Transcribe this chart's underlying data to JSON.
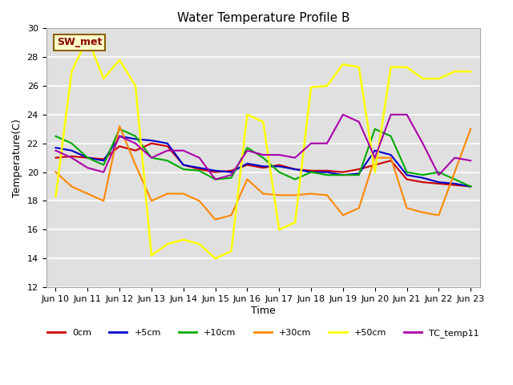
{
  "title": "Water Temperature Profile B",
  "xlabel": "Time",
  "ylabel": "Temperature(C)",
  "ylim": [
    12,
    30
  ],
  "yticks": [
    12,
    14,
    16,
    18,
    20,
    22,
    24,
    26,
    28,
    30
  ],
  "annotation_label": "SW_met",
  "annotation_color": "#8B0000",
  "annotation_bg": "#FFFFCC",
  "annotation_border": "#8B6000",
  "series_order": [
    "0cm",
    "+5cm",
    "+10cm",
    "+30cm",
    "+50cm",
    "TC_temp11"
  ],
  "series": {
    "0cm": {
      "color": "#CC0000",
      "lw": 1.5
    },
    "+5cm": {
      "color": "#0000CC",
      "lw": 1.5
    },
    "+10cm": {
      "color": "#00AA00",
      "lw": 1.5
    },
    "+30cm": {
      "color": "#FF8800",
      "lw": 1.5
    },
    "+50cm": {
      "color": "#FFFF00",
      "lw": 1.8
    },
    "TC_temp11": {
      "color": "#AA00AA",
      "lw": 1.5
    }
  },
  "x_labels": [
    "Jun 10",
    "Jun 11",
    "Jun 12",
    "Jun 13",
    "Jun 14",
    "Jun 15",
    "Jun 16",
    "Jun 17",
    "Jun 18",
    "Jun 19",
    "Jun 20",
    "Jun 21",
    "Jun 22",
    "Jun 23"
  ],
  "data": {
    "0cm": [
      21.0,
      21.1,
      21.0,
      20.9,
      21.8,
      21.5,
      22.0,
      21.8,
      20.5,
      20.2,
      20.0,
      20.1,
      20.5,
      20.3,
      20.5,
      20.2,
      20.1,
      20.1,
      20.0,
      20.2,
      20.5,
      20.8,
      19.5,
      19.3,
      19.2,
      19.1,
      19.0
    ],
    "+5cm": [
      21.7,
      21.5,
      21.0,
      20.8,
      22.5,
      22.3,
      22.2,
      22.0,
      20.5,
      20.3,
      20.1,
      20.0,
      20.6,
      20.4,
      20.4,
      20.2,
      20.0,
      20.0,
      19.8,
      19.9,
      21.5,
      21.2,
      19.8,
      19.6,
      19.3,
      19.2,
      19.0
    ],
    "+10cm": [
      22.5,
      22.0,
      21.0,
      20.5,
      23.0,
      22.5,
      21.0,
      20.8,
      20.2,
      20.1,
      19.5,
      19.6,
      21.7,
      21.0,
      20.0,
      19.5,
      20.0,
      19.8,
      19.8,
      19.8,
      23.0,
      22.5,
      20.0,
      19.8,
      20.0,
      19.5,
      19.0
    ],
    "+30cm": [
      20.0,
      19.0,
      18.5,
      18.0,
      23.2,
      20.5,
      18.0,
      18.5,
      18.5,
      18.0,
      16.7,
      17.0,
      19.5,
      18.5,
      18.4,
      18.4,
      18.5,
      18.4,
      17.0,
      17.5,
      21.0,
      21.0,
      17.5,
      17.2,
      17.0,
      20.0,
      23.0
    ],
    "+50cm": [
      18.3,
      27.0,
      29.3,
      26.5,
      27.8,
      26.0,
      14.2,
      15.0,
      15.3,
      15.0,
      14.0,
      14.5,
      24.0,
      23.5,
      16.0,
      16.5,
      25.9,
      26.0,
      27.5,
      27.3,
      20.0,
      27.3,
      27.3,
      26.5,
      26.5,
      27.0,
      27.0
    ],
    "TC_temp11": [
      21.5,
      21.0,
      20.3,
      20.0,
      22.5,
      22.0,
      21.0,
      21.5,
      21.5,
      21.0,
      19.5,
      19.8,
      21.5,
      21.2,
      21.2,
      21.0,
      22.0,
      22.0,
      24.0,
      23.5,
      21.0,
      24.0,
      24.0,
      22.0,
      19.8,
      21.0,
      20.8
    ]
  }
}
